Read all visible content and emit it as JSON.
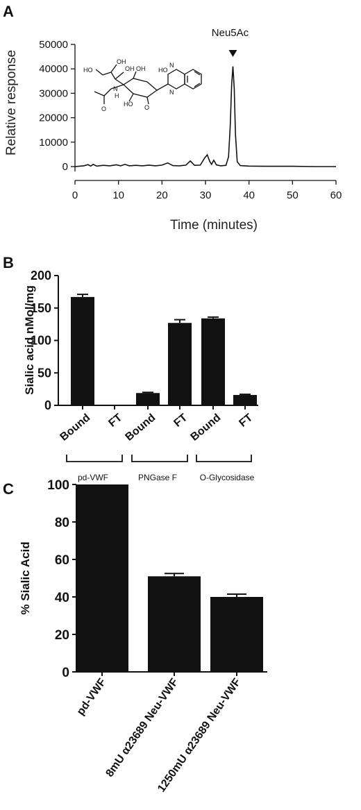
{
  "panels": {
    "a": "A",
    "b": "B",
    "c": "C"
  },
  "chart_data": [
    {
      "type": "line",
      "panel": "A",
      "title": "",
      "xlabel": "Time (minutes)",
      "ylabel": "Relative response",
      "xlim": [
        0,
        60
      ],
      "ylim": [
        0,
        50000
      ],
      "xticks": [
        "0",
        "10",
        "20",
        "30",
        "40",
        "50",
        "60"
      ],
      "yticks": [
        "0",
        "10000",
        "20000",
        "30000",
        "40000",
        "50000"
      ],
      "annotation": "Neu5Ac",
      "annotation_x": 36.3,
      "series": [
        {
          "points": [
            [
              0,
              0
            ],
            [
              2,
              300
            ],
            [
              3,
              800
            ],
            [
              3.6,
              200
            ],
            [
              4.2,
              900
            ],
            [
              5,
              200
            ],
            [
              6.5,
              500
            ],
            [
              8,
              300
            ],
            [
              9.5,
              700
            ],
            [
              10.5,
              300
            ],
            [
              11.5,
              900
            ],
            [
              12.5,
              300
            ],
            [
              14,
              500
            ],
            [
              15.5,
              300
            ],
            [
              17,
              600
            ],
            [
              18.5,
              300
            ],
            [
              20,
              600
            ],
            [
              21.3,
              1500
            ],
            [
              22.5,
              400
            ],
            [
              24,
              300
            ],
            [
              25.5,
              600
            ],
            [
              26.5,
              2300
            ],
            [
              27.5,
              500
            ],
            [
              28.8,
              600
            ],
            [
              29.8,
              3500
            ],
            [
              30.4,
              4800
            ],
            [
              31,
              2000
            ],
            [
              31.4,
              900
            ],
            [
              31.9,
              2600
            ],
            [
              32.5,
              700
            ],
            [
              33.5,
              300
            ],
            [
              34.7,
              500
            ],
            [
              35.3,
              4000
            ],
            [
              35.7,
              17000
            ],
            [
              36.0,
              33000
            ],
            [
              36.3,
              41000
            ],
            [
              36.6,
              32000
            ],
            [
              36.9,
              13000
            ],
            [
              37.3,
              2000
            ],
            [
              38,
              400
            ],
            [
              40,
              200
            ],
            [
              45,
              100
            ],
            [
              50,
              100
            ],
            [
              55,
              0
            ],
            [
              60,
              0
            ]
          ]
        }
      ]
    },
    {
      "type": "bar",
      "panel": "B",
      "title": "",
      "ylabel": "Sialic acid nMol/mg",
      "ylim": [
        0,
        200
      ],
      "yticks": [
        "0",
        "50",
        "100",
        "150",
        "200"
      ],
      "categories": [
        "Bound",
        "FT",
        "Bound",
        "FT",
        "Bound",
        "FT"
      ],
      "values": [
        167,
        1,
        19,
        127,
        134,
        16
      ],
      "errors": [
        4,
        0,
        1,
        5,
        2,
        1
      ],
      "groups": [
        "pd-VWF",
        "PNGase F",
        "O-Glycosidase"
      ]
    },
    {
      "type": "bar",
      "panel": "C",
      "title": "",
      "ylabel": "% Sialic Acid",
      "ylim": [
        0,
        100
      ],
      "yticks": [
        "0",
        "20",
        "40",
        "60",
        "80",
        "100"
      ],
      "categories": [
        "pd-VWF",
        "8mU α23689 Neu-VWF",
        "1250mU α23689 Neu-VWF"
      ],
      "values": [
        100,
        51,
        40
      ],
      "errors": [
        0,
        1.5,
        1.5
      ]
    }
  ]
}
